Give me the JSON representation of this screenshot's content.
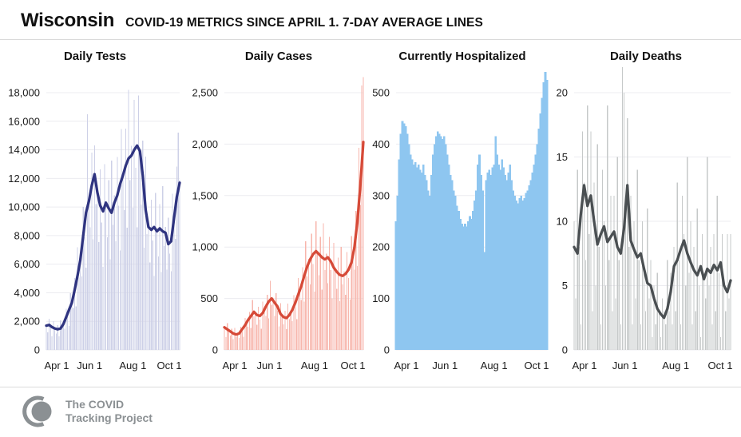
{
  "header": {
    "region": "Wisconsin",
    "subtitle": "COVID-19 METRICS SINCE APRIL 1. 7-DAY AVERAGE LINES"
  },
  "footer": {
    "logo_icon": "covid-tracking-project-mark",
    "logo_line1": "The COVID",
    "logo_line2": "Tracking Project",
    "logo_color": "#8b9093"
  },
  "style": {
    "grid_color": "#ececf0",
    "axis_text_color": "#1a1a1a",
    "background": "#ffffff"
  },
  "chart_data": [
    {
      "type": "bar+line",
      "title": "Daily Tests",
      "bar_color": "#cdd0e7",
      "line_color": "#2f3480",
      "ylim": [
        0,
        18000
      ],
      "y_top_value": 18000,
      "y_tick_values": [
        0,
        2000,
        4000,
        6000,
        8000,
        10000,
        12000,
        14000,
        16000,
        18000
      ],
      "y_tick_labels": [
        "0",
        "2,000",
        "4,000",
        "6,000",
        "8,000",
        "10,000",
        "12,000",
        "14,000",
        "16,000",
        "18,000"
      ],
      "x_tick_days": [
        0,
        61,
        122,
        183
      ],
      "x_tick_labels": [
        "Apr 1",
        "Jun 1",
        "Aug 1",
        "Oct 1"
      ],
      "days_total": 188,
      "grid": true,
      "bar_day_step": 2,
      "bars": [
        1800,
        1240,
        2190,
        1530,
        960,
        2015,
        1500,
        1150,
        1740,
        960,
        2070,
        1450,
        1890,
        1480,
        2880,
        2300,
        1680,
        3970,
        3300,
        2930,
        5040,
        3060,
        7180,
        5060,
        6620,
        5150,
        10000,
        7920,
        5760,
        16500,
        10400,
        8580,
        13800,
        7740,
        14300,
        10200,
        11550,
        7560,
        12630,
        8910,
        5820,
        13000,
        10300,
        7880,
        11880,
        6340,
        13250,
        8760,
        10820,
        7600,
        13500,
        10080,
        6960,
        15470,
        12200,
        9790,
        15480,
        8550,
        18200,
        11880,
        14280,
        9940,
        17500,
        12740,
        8580,
        17800,
        13900,
        10180,
        14640,
        7150,
        13520,
        8100,
        9030,
        6120,
        10500,
        7650,
        5160,
        10990,
        8300,
        6550,
        10200,
        5460,
        11450,
        7260,
        8610,
        5620,
        9250,
        6750,
        5500,
        10920,
        9200,
        7760,
        12840,
        15200,
        11900
      ],
      "avg_day_step": 4,
      "avg_values": [
        1700,
        1750,
        1600,
        1500,
        1450,
        1500,
        1800,
        2300,
        2800,
        3300,
        4200,
        5200,
        6300,
        8000,
        9600,
        10400,
        11500,
        12300,
        11000,
        10100,
        9700,
        10300,
        9900,
        9600,
        10300,
        10800,
        11600,
        12200,
        12900,
        13400,
        13600,
        14000,
        14300,
        13900,
        12200,
        9800,
        8600,
        8400,
        8600,
        8300,
        8500,
        8300,
        8200,
        7400,
        7600,
        9200,
        10700,
        11700
      ]
    },
    {
      "type": "bar+line",
      "title": "Daily Cases",
      "bar_color": "#f7b6ac",
      "line_color": "#d64a38",
      "ylim": [
        0,
        2500
      ],
      "y_top_value": 2500,
      "y_tick_values": [
        0,
        500,
        1000,
        1500,
        2000,
        2500
      ],
      "y_tick_labels": [
        "0",
        "500",
        "1,000",
        "1,500",
        "2,000",
        "2,500"
      ],
      "x_tick_days": [
        0,
        61,
        122,
        183
      ],
      "x_tick_labels": [
        "Apr 1",
        "Jun 1",
        "Aug 1",
        "Oct 1"
      ],
      "days_total": 188,
      "grid": true,
      "bar_day_step": 2,
      "bars": [
        200,
        125,
        260,
        190,
        140,
        205,
        105,
        215,
        130,
        165,
        115,
        225,
        180,
        130,
        310,
        265,
        225,
        370,
        215,
        485,
        325,
        370,
        245,
        420,
        295,
        205,
        470,
        390,
        330,
        535,
        305,
        670,
        440,
        505,
        330,
        550,
        380,
        230,
        455,
        335,
        250,
        380,
        200,
        450,
        300,
        385,
        280,
        530,
        415,
        300,
        700,
        580,
        485,
        805,
        470,
        1055,
        715,
        885,
        635,
        1130,
        835,
        565,
        1250,
        945,
        725,
        1100,
        585,
        1230,
        775,
        935,
        650,
        1100,
        775,
        500,
        1040,
        780,
        595,
        895,
        475,
        1000,
        635,
        765,
        535,
        950,
        700,
        490,
        1105,
        925,
        780,
        1350,
        815,
        1965,
        1410,
        2570,
        2650
      ],
      "avg_day_step": 4,
      "avg_values": [
        220,
        200,
        180,
        160,
        150,
        160,
        200,
        240,
        290,
        330,
        370,
        340,
        330,
        360,
        420,
        470,
        500,
        460,
        420,
        350,
        320,
        310,
        340,
        390,
        460,
        540,
        620,
        720,
        810,
        880,
        930,
        960,
        930,
        900,
        880,
        900,
        860,
        800,
        760,
        730,
        720,
        740,
        780,
        850,
        1000,
        1250,
        1600,
        2020
      ]
    },
    {
      "type": "bar",
      "title": "Currently Hospitalized",
      "bar_color": "#8ec6f0",
      "solid": true,
      "ylim": [
        0,
        500
      ],
      "y_top_value": 500,
      "y_tick_values": [
        0,
        100,
        200,
        300,
        400,
        500
      ],
      "y_tick_labels": [
        "0",
        "100",
        "200",
        "300",
        "400",
        "500"
      ],
      "x_tick_days": [
        0,
        61,
        122,
        183
      ],
      "x_tick_labels": [
        "Apr 1",
        "Jun 1",
        "Aug 1",
        "Oct 1"
      ],
      "days_total": 188,
      "grid": true,
      "bar_day_step": 2,
      "bars": [
        250,
        300,
        370,
        420,
        445,
        440,
        435,
        420,
        400,
        380,
        370,
        360,
        365,
        355,
        360,
        350,
        345,
        360,
        340,
        330,
        310,
        300,
        340,
        380,
        400,
        415,
        425,
        420,
        415,
        410,
        415,
        400,
        380,
        360,
        340,
        330,
        310,
        300,
        280,
        270,
        255,
        245,
        240,
        245,
        240,
        250,
        260,
        255,
        270,
        290,
        310,
        360,
        380,
        340,
        310,
        190,
        330,
        345,
        350,
        340,
        355,
        360,
        415,
        380,
        360,
        350,
        370,
        355,
        340,
        330,
        345,
        360,
        330,
        310,
        300,
        290,
        285,
        295,
        300,
        290,
        295,
        305,
        310,
        320,
        330,
        345,
        360,
        380,
        400,
        430,
        460,
        490,
        520,
        540,
        525
      ]
    },
    {
      "type": "bar+line",
      "title": "Daily Deaths",
      "bar_color": "#c6c9c9",
      "line_color": "#4a4f52",
      "ylim": [
        0,
        20
      ],
      "y_top_value": 20,
      "y_tick_values": [
        0,
        5,
        10,
        15,
        20
      ],
      "y_tick_labels": [
        "0",
        "5",
        "10",
        "15",
        "20"
      ],
      "x_tick_days": [
        0,
        61,
        122,
        183
      ],
      "x_tick_labels": [
        "Apr 1",
        "Jun 1",
        "Aug 1",
        "Oct 1"
      ],
      "days_total": 188,
      "grid": true,
      "bar_day_step": 2,
      "bars": [
        10,
        4,
        14,
        8,
        2,
        17,
        13,
        7,
        19,
        9,
        17,
        3,
        13,
        5,
        16,
        8,
        2,
        14,
        10,
        5,
        19,
        7,
        12,
        3,
        12,
        4,
        15,
        7,
        2,
        22,
        20,
        12,
        18,
        8,
        12,
        2,
        10,
        4,
        14,
        7,
        2,
        10,
        6,
        3,
        11,
        4,
        7,
        1,
        5,
        2,
        6,
        3,
        1,
        4,
        3,
        2,
        7,
        3,
        6,
        2,
        8,
        3,
        13,
        7,
        2,
        12,
        9,
        5,
        15,
        6,
        10,
        2,
        8,
        3,
        11,
        5,
        1,
        9,
        6,
        4,
        15,
        5,
        8,
        2,
        9,
        3,
        12,
        6,
        1,
        9,
        5,
        3,
        9,
        4,
        9
      ],
      "avg_day_step": 4,
      "avg_values": [
        8,
        7.5,
        10.5,
        12.8,
        11.2,
        12,
        10,
        8.2,
        9,
        9.6,
        8.4,
        8.8,
        9.2,
        8,
        7.5,
        9.5,
        12.8,
        8.5,
        7.8,
        7.2,
        7.5,
        6.3,
        5.2,
        5,
        4,
        3.2,
        2.8,
        2.5,
        3.2,
        4.5,
        6.5,
        7,
        7.8,
        8.5,
        7.5,
        6.8,
        6.2,
        5.8,
        6.5,
        5.5,
        6.3,
        6,
        6.6,
        6.2,
        6.8,
        5,
        4.5,
        5.4
      ]
    }
  ]
}
